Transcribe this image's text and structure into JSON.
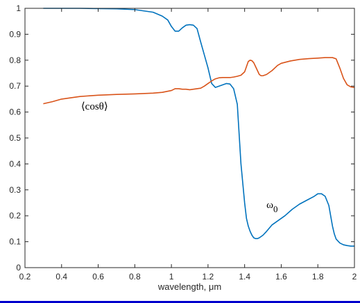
{
  "chart_data": {
    "type": "line",
    "xlabel": "wavelength, μm",
    "xlim": [
      0.2,
      2
    ],
    "ylim": [
      0,
      1
    ],
    "xticks": [
      "0.2",
      "0.4",
      "0.6",
      "0.8",
      "1",
      "1.2",
      "1.4",
      "1.6",
      "1.8",
      "2"
    ],
    "yticks": [
      "0",
      "0.1",
      "0.2",
      "0.3",
      "0.4",
      "0.5",
      "0.6",
      "0.7",
      "0.8",
      "0.9",
      "1"
    ],
    "grid": false,
    "series": [
      {
        "color": "#0072BD",
        "x": [
          0.3,
          0.5,
          0.7,
          0.8,
          0.85,
          0.9,
          0.95,
          0.98,
          1.0,
          1.02,
          1.04,
          1.06,
          1.08,
          1.1,
          1.12,
          1.14,
          1.16,
          1.18,
          1.2,
          1.22,
          1.24,
          1.26,
          1.28,
          1.3,
          1.32,
          1.34,
          1.36,
          1.38,
          1.4,
          1.41,
          1.42,
          1.43,
          1.44,
          1.45,
          1.46,
          1.47,
          1.48,
          1.49,
          1.5,
          1.52,
          1.55,
          1.58,
          1.62,
          1.66,
          1.7,
          1.74,
          1.78,
          1.8,
          1.82,
          1.84,
          1.86,
          1.87,
          1.88,
          1.89,
          1.9,
          1.92,
          1.94,
          1.96,
          1.98,
          2.0
        ],
        "y": [
          1.0,
          1.0,
          0.998,
          0.995,
          0.99,
          0.985,
          0.97,
          0.955,
          0.93,
          0.912,
          0.912,
          0.925,
          0.935,
          0.937,
          0.935,
          0.922,
          0.87,
          0.82,
          0.77,
          0.71,
          0.695,
          0.7,
          0.705,
          0.71,
          0.708,
          0.69,
          0.63,
          0.4,
          0.25,
          0.19,
          0.16,
          0.14,
          0.125,
          0.115,
          0.112,
          0.112,
          0.115,
          0.12,
          0.125,
          0.14,
          0.165,
          0.18,
          0.2,
          0.225,
          0.245,
          0.26,
          0.275,
          0.285,
          0.285,
          0.275,
          0.24,
          0.2,
          0.16,
          0.13,
          0.11,
          0.095,
          0.088,
          0.085,
          0.083,
          0.083
        ]
      },
      {
        "color": "#D95319",
        "x": [
          0.3,
          0.35,
          0.4,
          0.5,
          0.6,
          0.7,
          0.8,
          0.9,
          0.95,
          1.0,
          1.02,
          1.04,
          1.06,
          1.08,
          1.1,
          1.12,
          1.14,
          1.16,
          1.18,
          1.2,
          1.22,
          1.24,
          1.26,
          1.28,
          1.3,
          1.32,
          1.34,
          1.36,
          1.38,
          1.4,
          1.41,
          1.42,
          1.43,
          1.44,
          1.45,
          1.46,
          1.47,
          1.48,
          1.49,
          1.5,
          1.52,
          1.55,
          1.58,
          1.6,
          1.65,
          1.7,
          1.75,
          1.8,
          1.84,
          1.86,
          1.88,
          1.9,
          1.92,
          1.94,
          1.96,
          1.98,
          2.0
        ],
        "y": [
          0.632,
          0.64,
          0.65,
          0.66,
          0.665,
          0.668,
          0.67,
          0.673,
          0.676,
          0.683,
          0.69,
          0.69,
          0.688,
          0.688,
          0.686,
          0.688,
          0.69,
          0.692,
          0.7,
          0.71,
          0.72,
          0.728,
          0.732,
          0.733,
          0.733,
          0.733,
          0.735,
          0.738,
          0.742,
          0.755,
          0.775,
          0.795,
          0.8,
          0.798,
          0.79,
          0.775,
          0.76,
          0.745,
          0.74,
          0.74,
          0.745,
          0.76,
          0.78,
          0.788,
          0.797,
          0.803,
          0.806,
          0.808,
          0.81,
          0.81,
          0.81,
          0.805,
          0.77,
          0.73,
          0.705,
          0.697,
          0.695
        ]
      }
    ],
    "annotations": [
      {
        "text": "⟨cosθ⟩",
        "x": 0.58,
        "y": 0.61
      },
      {
        "text": "ω",
        "sub": "0",
        "x": 1.55,
        "y": 0.23
      }
    ]
  },
  "colors": {
    "axis": "#262626",
    "rule": "#0000cc"
  }
}
